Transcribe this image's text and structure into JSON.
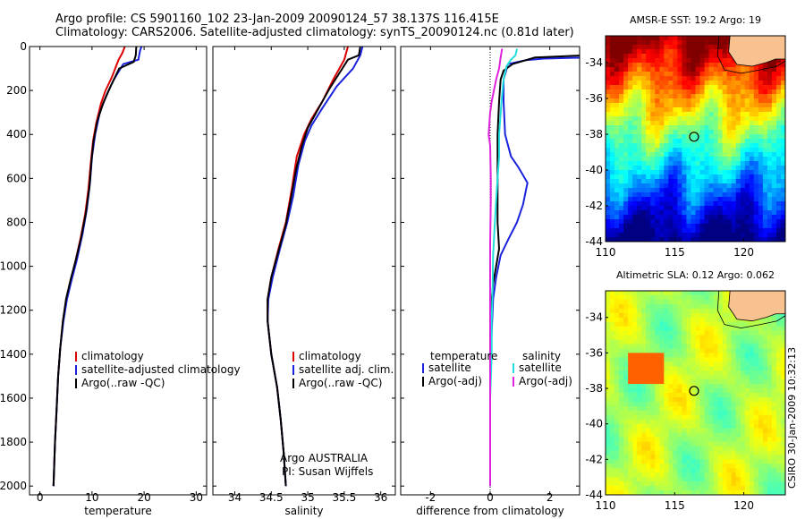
{
  "titles": {
    "line1": "Argo profile: CS 5901160_102 23-Jan-2009 20090124_57 38.137S 116.415E",
    "line2": "Climatology: CARS2006. Satellite-adjusted climatology: synTS_20090124.nc (0.81d later)"
  },
  "credit": "CSIRO 30-Jan-2009 10:32:13",
  "colors": {
    "red": "#dd0000",
    "blue": "#1a22dd",
    "black": "#000000",
    "cyan": "#22dddd",
    "magenta": "#dd22dd",
    "land": "#f7c190"
  },
  "chart_data": [
    {
      "type": "line",
      "xlabel": "temperature",
      "xlim": [
        -2,
        32
      ],
      "xticks": [
        0,
        10,
        20,
        30
      ],
      "ylim": [
        2040,
        0
      ],
      "yticks": [
        0,
        200,
        400,
        600,
        800,
        1000,
        1200,
        1400,
        1600,
        1800,
        2000
      ],
      "legend": {
        "entries": [
          "climatology",
          "satellite-adjusted climatology",
          "Argo(..raw -QC)"
        ]
      },
      "series": [
        {
          "name": "climatology",
          "color": "red",
          "points": [
            [
              16.3,
              0
            ],
            [
              15.8,
              30
            ],
            [
              15.1,
              60
            ],
            [
              13.8,
              140
            ],
            [
              12.6,
              200
            ],
            [
              11.7,
              260
            ],
            [
              10.8,
              350
            ],
            [
              10.2,
              430
            ],
            [
              9.8,
              520
            ],
            [
              9.3,
              650
            ],
            [
              8.7,
              760
            ],
            [
              7.9,
              860
            ],
            [
              6.8,
              980
            ],
            [
              5.9,
              1070
            ],
            [
              5.1,
              1150
            ],
            [
              4.4,
              1250
            ],
            [
              3.9,
              1370
            ],
            [
              3.5,
              1500
            ],
            [
              3.2,
              1650
            ],
            [
              2.9,
              1800
            ],
            [
              2.6,
              2000
            ]
          ]
        },
        {
          "name": "satellite-adjusted climatology",
          "color": "blue",
          "points": [
            [
              19.5,
              0
            ],
            [
              19.2,
              20
            ],
            [
              18.9,
              60
            ],
            [
              16.0,
              80
            ],
            [
              14.2,
              150
            ],
            [
              12.8,
              220
            ],
            [
              11.5,
              300
            ],
            [
              10.6,
              400
            ],
            [
              10.0,
              500
            ],
            [
              9.6,
              620
            ],
            [
              9.0,
              740
            ],
            [
              8.2,
              850
            ],
            [
              7.1,
              970
            ],
            [
              6.0,
              1070
            ],
            [
              5.2,
              1150
            ],
            [
              4.5,
              1250
            ],
            [
              3.9,
              1370
            ],
            [
              3.5,
              1500
            ],
            [
              3.2,
              1650
            ],
            [
              2.9,
              1800
            ],
            [
              2.6,
              2000
            ]
          ]
        },
        {
          "name": "Argo(..raw -QC)",
          "color": "black",
          "points": [
            [
              18.5,
              0
            ],
            [
              18.4,
              40
            ],
            [
              18.0,
              70
            ],
            [
              15.2,
              100
            ],
            [
              13.6,
              180
            ],
            [
              12.1,
              260
            ],
            [
              11.0,
              340
            ],
            [
              10.3,
              430
            ],
            [
              9.9,
              520
            ],
            [
              9.5,
              640
            ],
            [
              8.8,
              760
            ],
            [
              7.9,
              870
            ],
            [
              6.9,
              970
            ],
            [
              5.9,
              1060
            ],
            [
              5.0,
              1150
            ],
            [
              4.4,
              1250
            ],
            [
              3.9,
              1370
            ],
            [
              3.5,
              1500
            ],
            [
              3.2,
              1650
            ],
            [
              2.9,
              1800
            ],
            [
              2.6,
              2000
            ]
          ]
        }
      ]
    },
    {
      "type": "line",
      "xlabel": "salinity",
      "xlim": [
        33.7,
        36.2
      ],
      "xticks": [
        34,
        34.5,
        35,
        35.5,
        36
      ],
      "ylim": [
        2040,
        0
      ],
      "yticks": [
        0,
        200,
        400,
        600,
        800,
        1000,
        1200,
        1400,
        1600,
        1800,
        2000
      ],
      "legend": {
        "entries": [
          "climatology",
          "satellite adj. clim.",
          "Argo(..raw -QC)"
        ]
      },
      "annotation": [
        "Argo AUSTRALIA",
        "PI: Susan Wijffels"
      ],
      "series": [
        {
          "name": "climatology",
          "color": "red",
          "points": [
            [
              35.55,
              0
            ],
            [
              35.5,
              60
            ],
            [
              35.35,
              150
            ],
            [
              35.2,
              250
            ],
            [
              35.05,
              330
            ],
            [
              34.95,
              400
            ],
            [
              34.85,
              500
            ],
            [
              34.78,
              650
            ],
            [
              34.7,
              800
            ],
            [
              34.6,
              920
            ],
            [
              34.5,
              1050
            ],
            [
              34.45,
              1150
            ],
            [
              34.45,
              1250
            ],
            [
              34.5,
              1400
            ],
            [
              34.58,
              1550
            ],
            [
              34.63,
              1700
            ],
            [
              34.67,
              1850
            ],
            [
              34.7,
              2000
            ]
          ]
        },
        {
          "name": "satellite adj. clim.",
          "color": "blue",
          "points": [
            [
              35.75,
              0
            ],
            [
              35.72,
              40
            ],
            [
              35.62,
              100
            ],
            [
              35.4,
              180
            ],
            [
              35.2,
              280
            ],
            [
              35.05,
              360
            ],
            [
              34.96,
              430
            ],
            [
              34.87,
              540
            ],
            [
              34.8,
              680
            ],
            [
              34.72,
              800
            ],
            [
              34.62,
              920
            ],
            [
              34.52,
              1050
            ],
            [
              34.46,
              1150
            ],
            [
              34.45,
              1250
            ],
            [
              34.5,
              1400
            ],
            [
              34.58,
              1550
            ],
            [
              34.63,
              1700
            ],
            [
              34.67,
              1850
            ],
            [
              34.7,
              2000
            ]
          ]
        },
        {
          "name": "Argo(..raw -QC)",
          "color": "black",
          "points": [
            [
              35.72,
              0
            ],
            [
              35.7,
              40
            ],
            [
              35.55,
              60
            ],
            [
              35.3,
              190
            ],
            [
              35.15,
              280
            ],
            [
              35.0,
              370
            ],
            [
              34.92,
              450
            ],
            [
              34.84,
              560
            ],
            [
              34.77,
              690
            ],
            [
              34.7,
              810
            ],
            [
              34.6,
              930
            ],
            [
              34.5,
              1050
            ],
            [
              34.45,
              1150
            ],
            [
              34.45,
              1250
            ],
            [
              34.5,
              1400
            ],
            [
              34.58,
              1550
            ],
            [
              34.63,
              1700
            ],
            [
              34.67,
              1850
            ],
            [
              34.7,
              2000
            ]
          ]
        }
      ]
    },
    {
      "type": "line",
      "xlabel": "difference from climatology",
      "xlim": [
        -3,
        3
      ],
      "xticks": [
        -2,
        0,
        2
      ],
      "ylim": [
        2040,
        0
      ],
      "yticks": [
        0,
        200,
        400,
        600,
        800,
        1000,
        1200,
        1400,
        1600,
        1800,
        2000
      ],
      "legend": {
        "headers": [
          "temperature",
          "salinity"
        ],
        "entries": [
          "satellite",
          "Argo(-adj)",
          "satellite",
          "Argo(-adj)"
        ]
      },
      "series": [
        {
          "name": "temperature satellite",
          "color": "blue",
          "points": [
            [
              3.2,
              50
            ],
            [
              1.8,
              55
            ],
            [
              1.2,
              62
            ],
            [
              0.6,
              80
            ],
            [
              0.45,
              150
            ],
            [
              0.45,
              250
            ],
            [
              0.5,
              400
            ],
            [
              0.7,
              500
            ],
            [
              0.95,
              550
            ],
            [
              1.25,
              620
            ],
            [
              1.1,
              720
            ],
            [
              0.9,
              800
            ],
            [
              0.6,
              880
            ],
            [
              0.35,
              950
            ],
            [
              0.2,
              1050
            ],
            [
              0.1,
              1150
            ],
            [
              0.05,
              1300
            ],
            [
              0,
              1500
            ],
            [
              0,
              2000
            ]
          ]
        },
        {
          "name": "temperature Argo(-adj)",
          "color": "black",
          "points": [
            [
              3.2,
              40
            ],
            [
              2.3,
              45
            ],
            [
              1.5,
              50
            ],
            [
              0.75,
              80
            ],
            [
              0.45,
              110
            ],
            [
              0.35,
              150
            ],
            [
              0.3,
              250
            ],
            [
              0.25,
              400
            ],
            [
              0.25,
              600
            ],
            [
              0.25,
              800
            ],
            [
              0.3,
              920
            ],
            [
              0.2,
              1000
            ],
            [
              0.1,
              1080
            ],
            [
              0.02,
              1200
            ],
            [
              0,
              1400
            ],
            [
              0,
              2000
            ]
          ]
        },
        {
          "name": "salinity satellite",
          "color": "cyan",
          "points": [
            [
              0.9,
              10
            ],
            [
              0.85,
              40
            ],
            [
              0.7,
              60
            ],
            [
              0.55,
              90
            ],
            [
              0.45,
              150
            ],
            [
              0.38,
              250
            ],
            [
              0.3,
              400
            ],
            [
              0.3,
              500
            ],
            [
              0.25,
              600
            ],
            [
              0.2,
              700
            ],
            [
              0.15,
              820
            ],
            [
              0.1,
              950
            ],
            [
              0.08,
              1100
            ],
            [
              0.05,
              1250
            ],
            [
              0.05,
              1400
            ],
            [
              0,
              1600
            ],
            [
              0,
              2000
            ]
          ]
        },
        {
          "name": "salinity Argo(-adj)",
          "color": "magenta",
          "points": [
            [
              0.4,
              10
            ],
            [
              0.35,
              50
            ],
            [
              0.3,
              100
            ],
            [
              0.2,
              150
            ],
            [
              0.05,
              250
            ],
            [
              0,
              300
            ],
            [
              -0.05,
              400
            ],
            [
              0,
              450
            ],
            [
              0.02,
              600
            ],
            [
              0.02,
              700
            ],
            [
              0,
              900
            ],
            [
              0,
              2000
            ]
          ]
        }
      ]
    },
    {
      "type": "heatmap",
      "title": "AMSR-E SST: 19.2 Argo: 19",
      "xlim": [
        110,
        123
      ],
      "xticks": [
        110,
        115,
        120
      ],
      "ylim": [
        -44,
        -32.5
      ],
      "yticks": [
        -34,
        -36,
        -38,
        -40,
        -42,
        -44
      ],
      "argo_point": [
        116.4,
        -38.14
      ]
    },
    {
      "type": "heatmap",
      "title": "Altimetric SLA: 0.12 Argo: 0.062",
      "xlim": [
        110,
        123
      ],
      "xticks": [
        110,
        115,
        120
      ],
      "ylim": [
        -44,
        -32.5
      ],
      "yticks": [
        -34,
        -36,
        -38,
        -40,
        -42,
        -44
      ],
      "argo_point": [
        116.4,
        -38.14
      ]
    }
  ]
}
